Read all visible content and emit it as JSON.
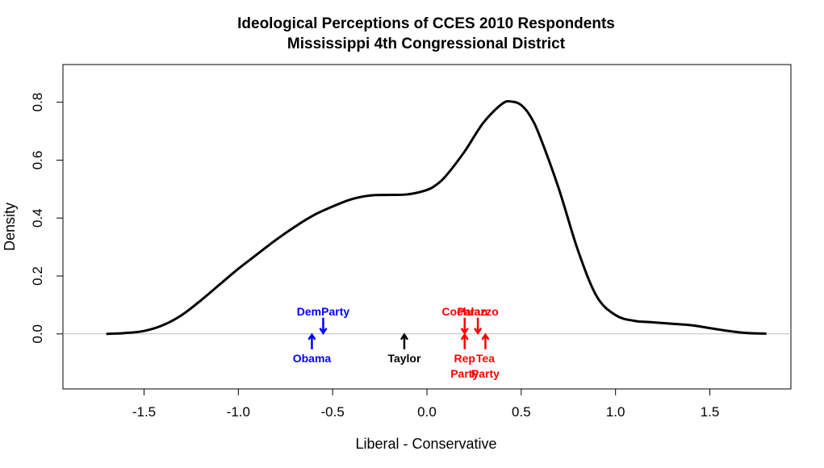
{
  "chart_data": {
    "type": "line",
    "title": "Ideological Perceptions of CCES 2010 Respondents",
    "subtitle": "Mississippi 4th Congressional District",
    "xlabel": "Liberal - Conservative",
    "ylabel": "Density",
    "xlim": [
      -1.93,
      1.93
    ],
    "ylim": [
      -0.19,
      0.93
    ],
    "x_ticks": [
      -1.5,
      -1.0,
      -0.5,
      0.0,
      0.5,
      1.0,
      1.5
    ],
    "x_tick_labels": [
      "-1.5",
      "-1.0",
      "-0.5",
      "0.0",
      "0.5",
      "1.0",
      "1.5"
    ],
    "y_ticks": [
      0.0,
      0.2,
      0.4,
      0.6,
      0.8
    ],
    "y_tick_labels": [
      "0.0",
      "0.2",
      "0.4",
      "0.6",
      "0.8"
    ],
    "grid": false,
    "reference_line_y": 0,
    "series": [
      {
        "color": "#000000",
        "x": [
          -1.7,
          -1.6,
          -1.5,
          -1.4,
          -1.3,
          -1.2,
          -1.1,
          -1.0,
          -0.9,
          -0.8,
          -0.7,
          -0.6,
          -0.5,
          -0.4,
          -0.3,
          -0.2,
          -0.1,
          0.0,
          0.05,
          0.1,
          0.2,
          0.3,
          0.4,
          0.45,
          0.5,
          0.55,
          0.6,
          0.7,
          0.8,
          0.9,
          1.0,
          1.1,
          1.2,
          1.3,
          1.4,
          1.5,
          1.6,
          1.7,
          1.8
        ],
        "y": [
          0.0,
          0.003,
          0.01,
          0.03,
          0.065,
          0.115,
          0.17,
          0.225,
          0.275,
          0.325,
          0.37,
          0.41,
          0.44,
          0.465,
          0.478,
          0.48,
          0.482,
          0.497,
          0.515,
          0.545,
          0.63,
          0.73,
          0.795,
          0.802,
          0.79,
          0.75,
          0.68,
          0.5,
          0.29,
          0.13,
          0.065,
          0.045,
          0.04,
          0.035,
          0.03,
          0.02,
          0.01,
          0.003,
          0.001
        ]
      }
    ],
    "annotations": [
      {
        "label": "DemParty",
        "x": -0.55,
        "side": "above",
        "color": "#0000ff"
      },
      {
        "label": "Obama",
        "x": -0.61,
        "side": "below",
        "color": "#0000ff"
      },
      {
        "label": "Taylor",
        "x": -0.12,
        "side": "below",
        "color": "#000000"
      },
      {
        "label": "Cochran",
        "x": 0.2,
        "side": "above",
        "color": "#ff0000"
      },
      {
        "label": "Rep\nParty",
        "x": 0.2,
        "side": "below",
        "color": "#ff0000"
      },
      {
        "label": "Palazzo",
        "x": 0.27,
        "side": "above",
        "color": "#ff0000"
      },
      {
        "label": "Tea\nParty",
        "x": 0.31,
        "side": "below",
        "color": "#ff0000"
      }
    ]
  }
}
